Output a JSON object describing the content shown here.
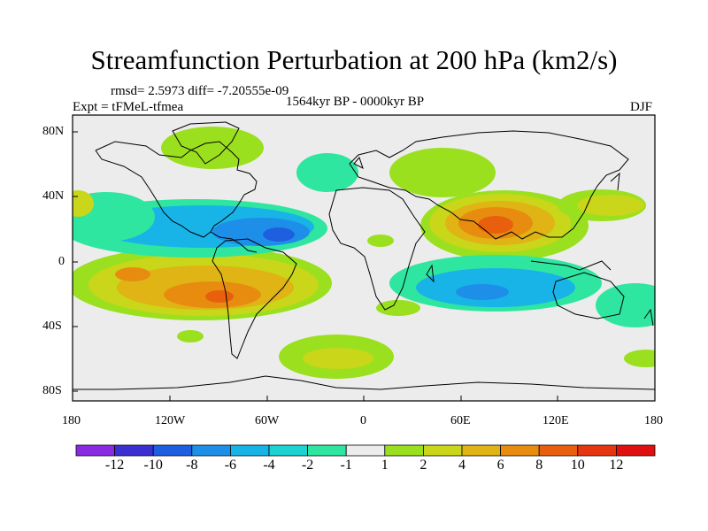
{
  "title": "Streamfunction Perturbation at 200 hPa (km2/s)",
  "stats_text": "rmsd= 2.5973 diff= -7.20555e-09",
  "experiment_text": "Expt = tFMeL-tfmea",
  "period_text": "1564kyr BP - 0000kyr BP",
  "season_text": "DJF",
  "lat_ticks": [
    "80N",
    "40N",
    "0",
    "40S",
    "80S"
  ],
  "lon_ticks": [
    "180",
    "120W",
    "60W",
    "0",
    "60E",
    "120E",
    "180"
  ],
  "colorbar": {
    "labels": [
      "-12",
      "-10",
      "-8",
      "-6",
      "-4",
      "-2",
      "-1",
      "1",
      "2",
      "4",
      "6",
      "8",
      "10",
      "12"
    ],
    "colors": [
      "#8a2be2",
      "#3a2fd0",
      "#1e5fe0",
      "#1e8fe8",
      "#18b4e8",
      "#1ed2d2",
      "#2ee6a0",
      "#ececec",
      "#9be01e",
      "#c9d61a",
      "#e0b414",
      "#e88c10",
      "#e8600e",
      "#e6360f",
      "#e01010"
    ]
  },
  "map": {
    "background_color": "#ececec",
    "coastline_color": "#000000"
  }
}
